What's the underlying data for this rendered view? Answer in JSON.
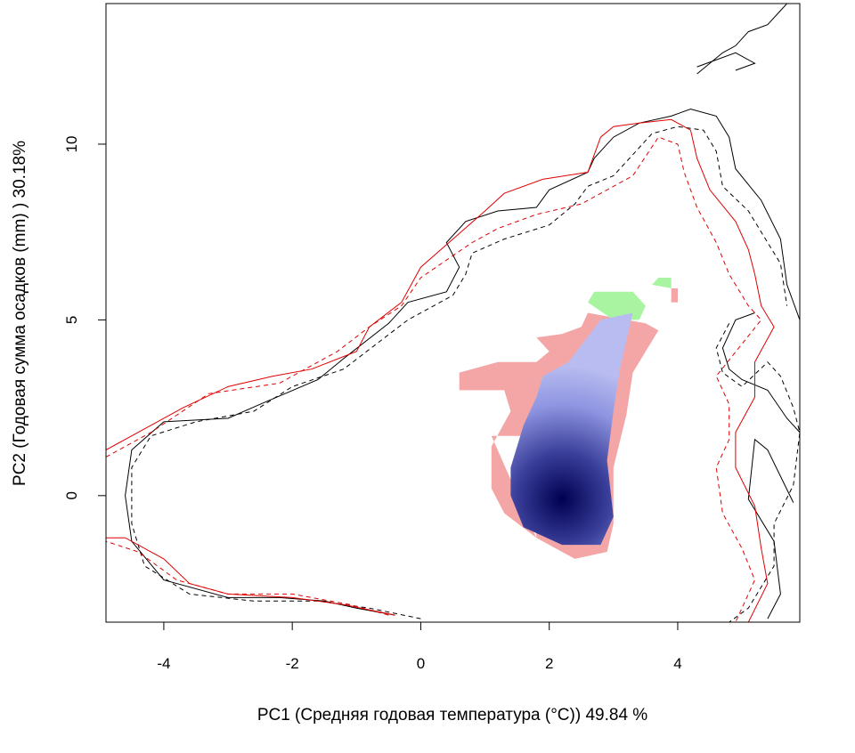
{
  "chart_data": {
    "type": "heatmap",
    "title": "",
    "xlabel": "PC1 (Средняя годовая температура (°C)) 49.84 %",
    "ylabel": "PC2 (Годовая сумма осадков  (mm) ) 30.18%",
    "xlim": [
      -4.9,
      5.9
    ],
    "ylim": [
      -3.6,
      14.0
    ],
    "x_ticks": [
      "-4",
      "-2",
      "0",
      "2",
      "4"
    ],
    "y_ticks": [
      "0",
      "5",
      "10"
    ],
    "grid": false,
    "legend": "none",
    "colors": {
      "overlap_density_low": "#b8bcf0",
      "overlap_density_high": "#000050",
      "native_only": "#f4a6a6",
      "invaded_only": "#a8f4a0",
      "contour_black": "#000000",
      "contour_red": "#e00000"
    },
    "density_center": {
      "x": 2.2,
      "y": -0.1
    },
    "regions": {
      "pink": [
        [
          [
            1.1,
            1.7
          ],
          [
            1.6,
            1.7
          ],
          [
            1.7,
            2.2
          ],
          [
            1.8,
            -1.2
          ],
          [
            2.4,
            -1.8
          ],
          [
            2.9,
            -1.6
          ],
          [
            3.0,
            -0.8
          ],
          [
            3.0,
            0.8
          ],
          [
            3.2,
            2.3
          ],
          [
            3.3,
            3.5
          ],
          [
            3.7,
            4.7
          ],
          [
            3.5,
            4.9
          ],
          [
            2.6,
            5.2
          ],
          [
            2.5,
            4.8
          ],
          [
            2.2,
            4.6
          ],
          [
            1.8,
            4.5
          ],
          [
            2.0,
            4.1
          ],
          [
            1.8,
            3.8
          ],
          [
            1.2,
            3.8
          ],
          [
            0.6,
            3.5
          ],
          [
            0.6,
            3.0
          ],
          [
            1.3,
            3.0
          ],
          [
            1.4,
            2.4
          ],
          [
            1.1,
            1.4
          ],
          [
            1.1,
            0.2
          ],
          [
            1.3,
            -0.5
          ],
          [
            1.8,
            -1.2
          ]
        ],
        [
          [
            3.9,
            5.9
          ],
          [
            4.0,
            5.9
          ],
          [
            4.0,
            5.5
          ],
          [
            3.9,
            5.5
          ]
        ]
      ],
      "green": [
        [
          [
            2.6,
            5.5
          ],
          [
            2.7,
            5.8
          ],
          [
            3.3,
            5.8
          ],
          [
            3.5,
            5.4
          ],
          [
            3.4,
            5.0
          ],
          [
            3.0,
            5.0
          ]
        ],
        [
          [
            3.6,
            6.0
          ],
          [
            3.7,
            6.2
          ],
          [
            3.9,
            6.2
          ],
          [
            3.9,
            5.9
          ]
        ],
        [
          [
            1.8,
            2.8
          ],
          [
            1.9,
            3.4
          ],
          [
            2.6,
            3.9
          ],
          [
            2.7,
            3.4
          ],
          [
            2.2,
            3.1
          ]
        ]
      ],
      "blue": [
        [
          [
            1.4,
            0.8
          ],
          [
            1.6,
            2.0
          ],
          [
            1.8,
            2.8
          ],
          [
            1.9,
            3.4
          ],
          [
            2.3,
            3.8
          ],
          [
            2.8,
            5.0
          ],
          [
            3.3,
            5.2
          ],
          [
            3.1,
            3.6
          ],
          [
            3.0,
            2.4
          ],
          [
            2.9,
            1.0
          ],
          [
            3.0,
            -0.6
          ],
          [
            2.8,
            -1.4
          ],
          [
            2.2,
            -1.4
          ],
          [
            1.6,
            -0.9
          ],
          [
            1.4,
            0.0
          ]
        ]
      ]
    },
    "series": [
      {
        "color": "#000000",
        "dash": "none",
        "paths": [
          [
            [
              -0.4,
              -3.4
            ],
            [
              -1.0,
              -3.2
            ],
            [
              -1.5,
              -3.0
            ],
            [
              -2.2,
              -2.9
            ],
            [
              -3.0,
              -2.9
            ],
            [
              -4.0,
              -2.4
            ],
            [
              -4.5,
              -1.3
            ],
            [
              -4.6,
              0.0
            ],
            [
              -4.5,
              1.3
            ],
            [
              -4.0,
              2.1
            ],
            [
              -3.0,
              2.2
            ],
            [
              -2.5,
              2.6
            ],
            [
              -1.6,
              3.3
            ],
            [
              -1.2,
              3.9
            ],
            [
              -0.5,
              4.9
            ],
            [
              -0.2,
              5.5
            ],
            [
              0.4,
              5.8
            ],
            [
              0.6,
              6.5
            ],
            [
              0.4,
              7.2
            ],
            [
              0.7,
              7.8
            ],
            [
              1.2,
              8.1
            ],
            [
              1.8,
              8.2
            ],
            [
              2.0,
              8.7
            ],
            [
              2.6,
              9.2
            ],
            [
              2.7,
              9.6
            ],
            [
              3.0,
              10.2
            ],
            [
              3.4,
              10.6
            ],
            [
              3.9,
              10.8
            ],
            [
              4.2,
              11.0
            ],
            [
              4.6,
              10.8
            ],
            [
              4.8,
              10.2
            ],
            [
              4.9,
              9.3
            ],
            [
              5.3,
              8.4
            ],
            [
              5.6,
              7.3
            ],
            [
              5.7,
              6.0
            ],
            [
              5.9,
              5.0
            ]
          ],
          [
            [
              5.2,
              5.2
            ],
            [
              4.9,
              5.0
            ],
            [
              4.7,
              4.2
            ],
            [
              4.8,
              3.6
            ],
            [
              5.0,
              3.3
            ],
            [
              5.4,
              3.0
            ],
            [
              5.7,
              2.2
            ],
            [
              5.9,
              1.8
            ]
          ],
          [
            [
              5.8,
              -0.2
            ],
            [
              5.4,
              1.3
            ],
            [
              5.2,
              1.6
            ],
            [
              5.1,
              -0.1
            ],
            [
              5.5,
              -1.3
            ],
            [
              5.6,
              -2.8
            ],
            [
              5.4,
              -3.5
            ]
          ],
          [
            [
              4.3,
              12.0
            ],
            [
              4.7,
              12.6
            ],
            [
              4.9,
              12.8
            ],
            [
              5.1,
              13.2
            ],
            [
              5.4,
              13.4
            ],
            [
              5.6,
              13.8
            ],
            [
              5.7,
              14.0
            ]
          ],
          [
            [
              4.9,
              12.1
            ],
            [
              5.2,
              12.3
            ],
            [
              4.9,
              12.6
            ],
            [
              4.3,
              12.2
            ]
          ]
        ]
      },
      {
        "color": "#000000",
        "dash": "5,4",
        "paths": [
          [
            [
              0.0,
              -3.5
            ],
            [
              -0.8,
              -3.2
            ],
            [
              -1.6,
              -3.0
            ],
            [
              -2.6,
              -3.0
            ],
            [
              -3.6,
              -2.8
            ],
            [
              -4.3,
              -2.0
            ],
            [
              -4.5,
              -0.8
            ],
            [
              -4.5,
              0.8
            ],
            [
              -4.2,
              1.7
            ],
            [
              -3.5,
              2.1
            ],
            [
              -2.6,
              2.4
            ],
            [
              -2.0,
              3.1
            ],
            [
              -1.2,
              3.6
            ],
            [
              -0.7,
              4.3
            ],
            [
              -0.2,
              5.0
            ],
            [
              0.5,
              5.7
            ],
            [
              0.7,
              6.3
            ],
            [
              0.8,
              6.9
            ],
            [
              1.3,
              7.3
            ],
            [
              2.0,
              7.7
            ],
            [
              2.4,
              8.3
            ],
            [
              2.6,
              8.8
            ],
            [
              3.0,
              9.1
            ],
            [
              3.3,
              9.7
            ],
            [
              3.6,
              10.3
            ],
            [
              4.0,
              10.5
            ],
            [
              4.4,
              10.4
            ],
            [
              4.6,
              9.8
            ],
            [
              4.7,
              8.8
            ],
            [
              5.1,
              8.1
            ],
            [
              5.4,
              7.2
            ],
            [
              5.6,
              6.6
            ],
            [
              5.7,
              5.4
            ]
          ],
          [
            [
              4.8,
              4.9
            ],
            [
              4.6,
              4.2
            ],
            [
              4.7,
              3.5
            ],
            [
              5.0,
              3.1
            ],
            [
              5.4,
              3.8
            ],
            [
              5.6,
              3.4
            ],
            [
              5.8,
              2.5
            ],
            [
              5.9,
              1.8
            ],
            [
              5.8,
              0.3
            ],
            [
              5.5,
              -0.8
            ],
            [
              5.5,
              -2.0
            ],
            [
              5.1,
              -3.2
            ],
            [
              4.8,
              -3.6
            ]
          ]
        ]
      },
      {
        "color": "#e00000",
        "dash": "none",
        "paths": [
          [
            [
              -0.4,
              -3.4
            ],
            [
              -1.2,
              -3.1
            ],
            [
              -2.0,
              -2.9
            ],
            [
              -3.0,
              -2.8
            ],
            [
              -3.6,
              -2.5
            ],
            [
              -4.0,
              -1.8
            ],
            [
              -4.6,
              -1.2
            ],
            [
              -4.9,
              -1.2
            ]
          ],
          [
            [
              -4.9,
              1.3
            ],
            [
              -4.5,
              1.7
            ],
            [
              -3.7,
              2.5
            ],
            [
              -3.0,
              3.1
            ],
            [
              -2.3,
              3.4
            ],
            [
              -1.7,
              3.6
            ],
            [
              -1.0,
              4.1
            ],
            [
              -0.8,
              4.8
            ],
            [
              -0.3,
              5.5
            ],
            [
              0.0,
              6.5
            ],
            [
              0.5,
              7.3
            ],
            [
              1.0,
              8.1
            ],
            [
              1.3,
              8.6
            ],
            [
              1.9,
              9.0
            ],
            [
              2.6,
              9.2
            ],
            [
              2.8,
              10.2
            ],
            [
              3.0,
              10.5
            ],
            [
              3.4,
              10.6
            ],
            [
              3.9,
              10.7
            ],
            [
              4.2,
              10.4
            ],
            [
              4.3,
              9.6
            ],
            [
              4.5,
              8.7
            ],
            [
              4.9,
              7.8
            ],
            [
              5.1,
              7.0
            ],
            [
              5.2,
              6.3
            ],
            [
              5.3,
              5.4
            ],
            [
              5.5,
              4.8
            ],
            [
              5.2,
              3.8
            ],
            [
              5.2,
              2.8
            ],
            [
              4.9,
              1.8
            ],
            [
              4.9,
              0.8
            ],
            [
              5.2,
              -0.3
            ],
            [
              5.3,
              -1.5
            ],
            [
              5.4,
              -2.5
            ],
            [
              5.1,
              -3.6
            ]
          ]
        ]
      },
      {
        "color": "#e00000",
        "dash": "5,4",
        "paths": [
          [
            [
              -0.5,
              -3.4
            ],
            [
              -1.1,
              -3.1
            ],
            [
              -2.0,
              -2.8
            ],
            [
              -3.0,
              -2.8
            ],
            [
              -3.8,
              -2.4
            ],
            [
              -4.4,
              -1.6
            ],
            [
              -4.9,
              -1.3
            ]
          ],
          [
            [
              -4.9,
              1.1
            ],
            [
              -4.2,
              1.8
            ],
            [
              -3.3,
              2.9
            ],
            [
              -2.2,
              3.2
            ],
            [
              -1.3,
              4.1
            ],
            [
              -0.8,
              4.8
            ],
            [
              -0.3,
              5.4
            ],
            [
              0.0,
              6.2
            ],
            [
              0.8,
              7.2
            ],
            [
              1.2,
              7.6
            ],
            [
              1.8,
              8.0
            ],
            [
              2.5,
              8.3
            ],
            [
              3.3,
              9.1
            ],
            [
              3.7,
              10.2
            ],
            [
              4.0,
              10.0
            ],
            [
              4.1,
              9.2
            ],
            [
              4.3,
              8.2
            ],
            [
              4.6,
              7.2
            ],
            [
              4.8,
              6.3
            ],
            [
              5.1,
              5.4
            ],
            [
              5.3,
              5.0
            ],
            [
              4.6,
              3.4
            ],
            [
              4.8,
              2.6
            ],
            [
              4.8,
              1.6
            ],
            [
              4.6,
              0.8
            ],
            [
              4.7,
              -0.5
            ],
            [
              5.0,
              -1.5
            ],
            [
              5.2,
              -2.4
            ],
            [
              4.9,
              -3.6
            ]
          ]
        ]
      }
    ]
  }
}
